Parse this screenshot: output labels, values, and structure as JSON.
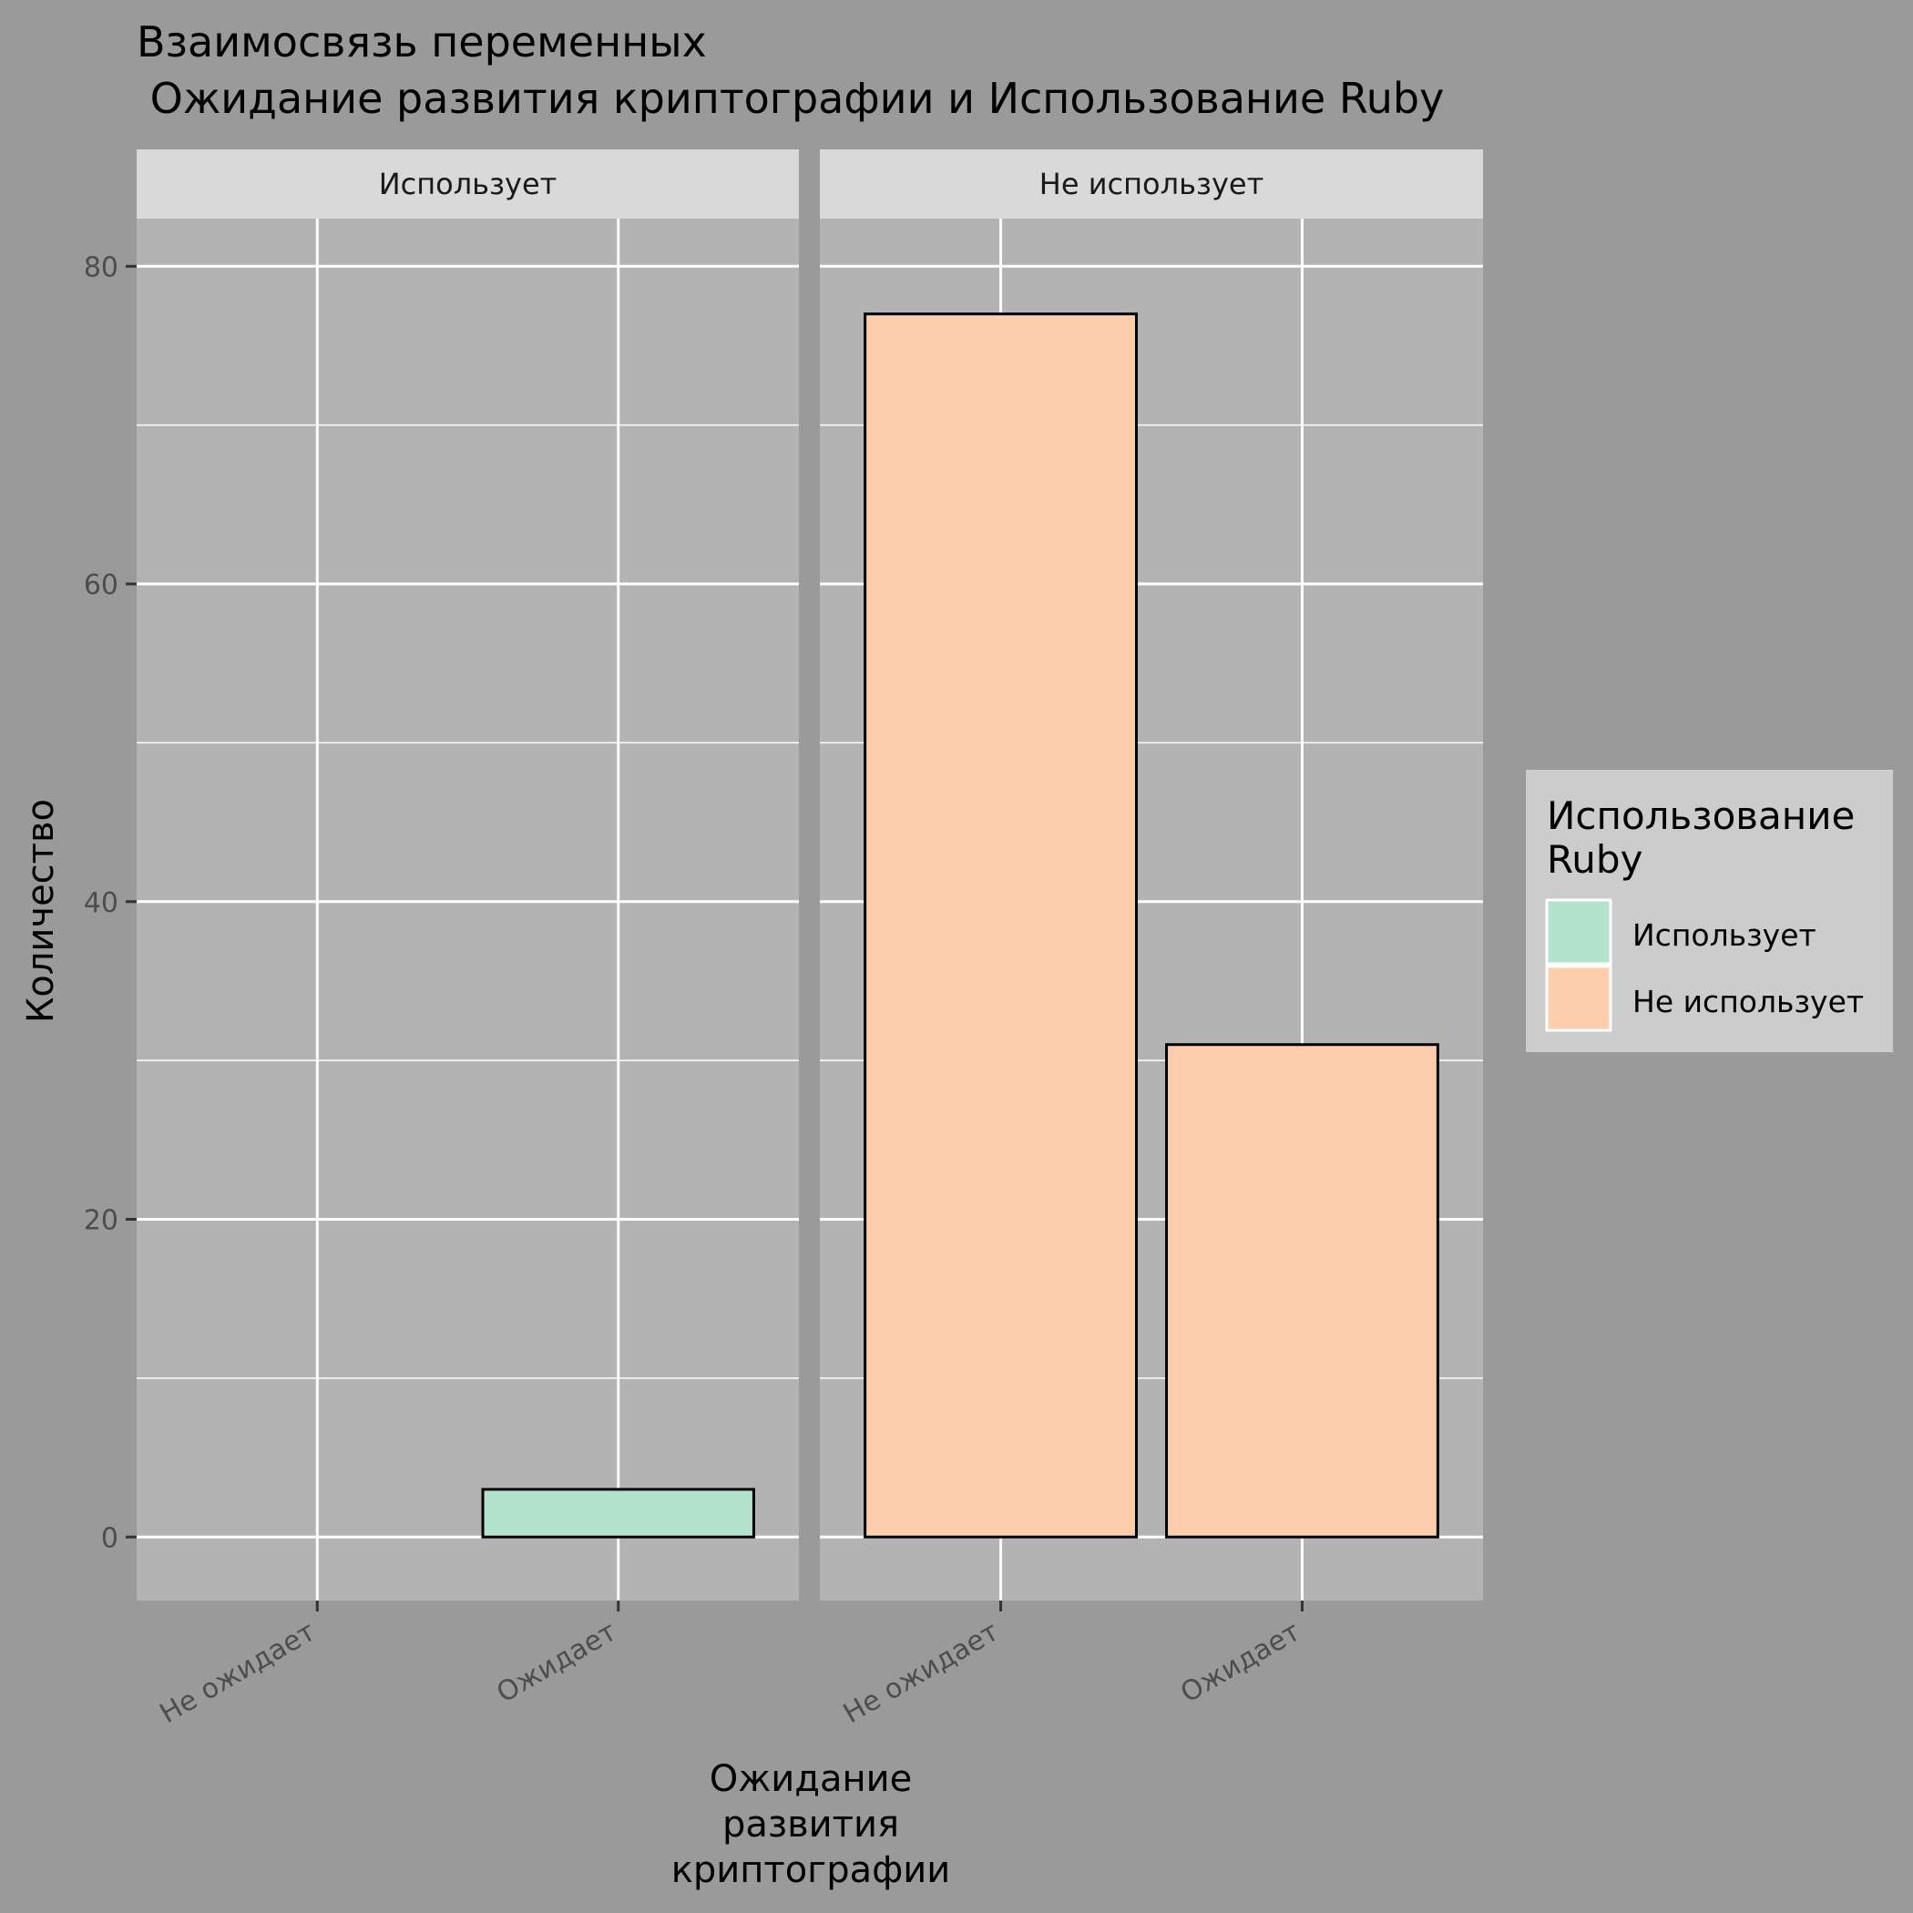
{
  "chart_data": {
    "type": "bar",
    "title_lines": [
      "Взаимосвязь переменных",
      " Ожидание развития криптографии и Использование Ruby"
    ],
    "xlabel_lines": [
      "Ожидание",
      "развития",
      "криптографии"
    ],
    "ylabel": "Количество",
    "ylim": [
      -4,
      83
    ],
    "y_ticks": [
      0,
      20,
      40,
      60,
      80
    ],
    "y_minor_ticks": [
      10,
      30,
      50,
      70
    ],
    "categories": [
      "Не ожидает",
      "Ожидает"
    ],
    "grid": true,
    "facets": [
      {
        "label": "Использует",
        "bars": [
          {
            "category": "Не ожидает",
            "value": 0,
            "fill": "#b3e2cd"
          },
          {
            "category": "Ожидает",
            "value": 3,
            "fill": "#b3e2cd"
          }
        ]
      },
      {
        "label": "Не использует",
        "bars": [
          {
            "category": "Не ожидает",
            "value": 77,
            "fill": "#fdcdac"
          },
          {
            "category": "Ожидает",
            "value": 31,
            "fill": "#fdcdac"
          }
        ]
      }
    ],
    "legend": {
      "title_lines": [
        "Использование",
        "Ruby"
      ],
      "position": "right",
      "entries": [
        {
          "label": "Использует",
          "color": "#b3e2cd"
        },
        {
          "label": "Не использует",
          "color": "#fdcdac"
        }
      ]
    }
  }
}
